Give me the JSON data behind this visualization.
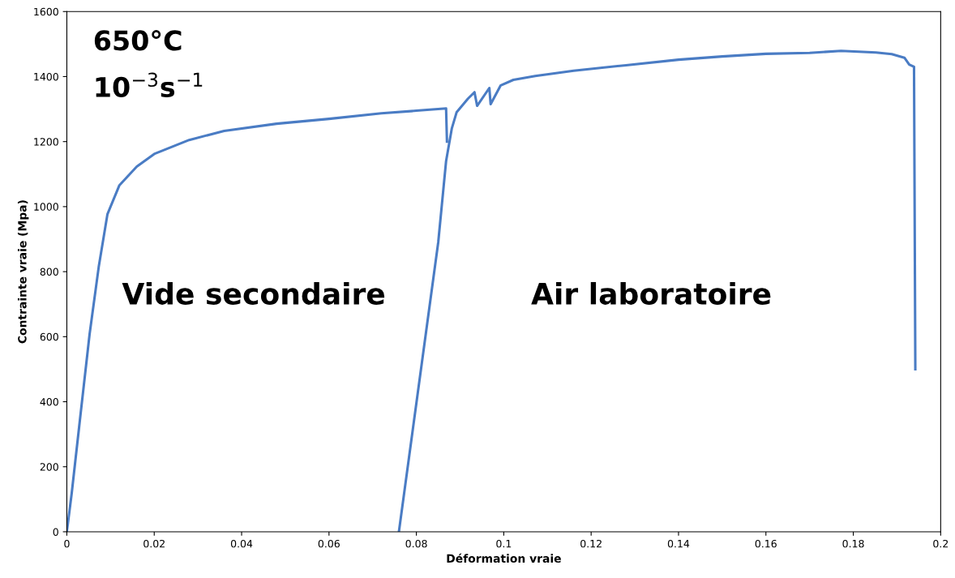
{
  "chart_data": {
    "type": "line",
    "xlabel": "Déformation vraie",
    "ylabel": "Contrainte vraie (Mpa)",
    "annotations": [
      "650°C",
      "10$^{−3}$s$^{−1}$",
      "Vide secondaire",
      "Air laboratoire"
    ],
    "xlim": [
      0,
      0.2
    ],
    "xticks": [
      0,
      0.02,
      0.04,
      0.06,
      0.08,
      0.1,
      0.12,
      0.14,
      0.16,
      0.18,
      0.2
    ],
    "ylim": [
      0,
      1600
    ],
    "yticks": [
      0,
      200,
      400,
      600,
      800,
      1000,
      1200,
      1400,
      1600
    ],
    "grid": false,
    "legend": false,
    "marker": "none",
    "line_style": "solid",
    "series": [
      {
        "color": "#4a7cc4",
        "x": [
          0,
          0.0011,
          0.0031,
          0.0052,
          0.0073,
          0.0093,
          0.012,
          0.016,
          0.02,
          0.028,
          0.036,
          0.048,
          0.06,
          0.072,
          0.08,
          0.0868,
          0.087
        ],
        "values": [
          0,
          117,
          357,
          607,
          815,
          977,
          1065,
          1123,
          1162,
          1205,
          1233,
          1255,
          1270,
          1287,
          1295,
          1302,
          1200
        ]
      },
      {
        "color": "#4a7cc4",
        "x": [
          0.076,
          0.085,
          0.0868,
          0.0881,
          0.0892,
          0.0918,
          0.0933,
          0.0939,
          0.0967,
          0.097,
          0.0993,
          0.1022,
          0.1072,
          0.116,
          0.128,
          0.14,
          0.15,
          0.16,
          0.17,
          0.1772,
          0.1852,
          0.1888,
          0.1917,
          0.1928,
          0.1939,
          0.1942
        ],
        "values": [
          0,
          890,
          1140,
          1240,
          1290,
          1332,
          1352,
          1310,
          1365,
          1315,
          1373,
          1390,
          1402,
          1418,
          1435,
          1452,
          1462,
          1470,
          1473,
          1479,
          1474,
          1469,
          1458,
          1437,
          1430,
          500
        ]
      }
    ]
  }
}
